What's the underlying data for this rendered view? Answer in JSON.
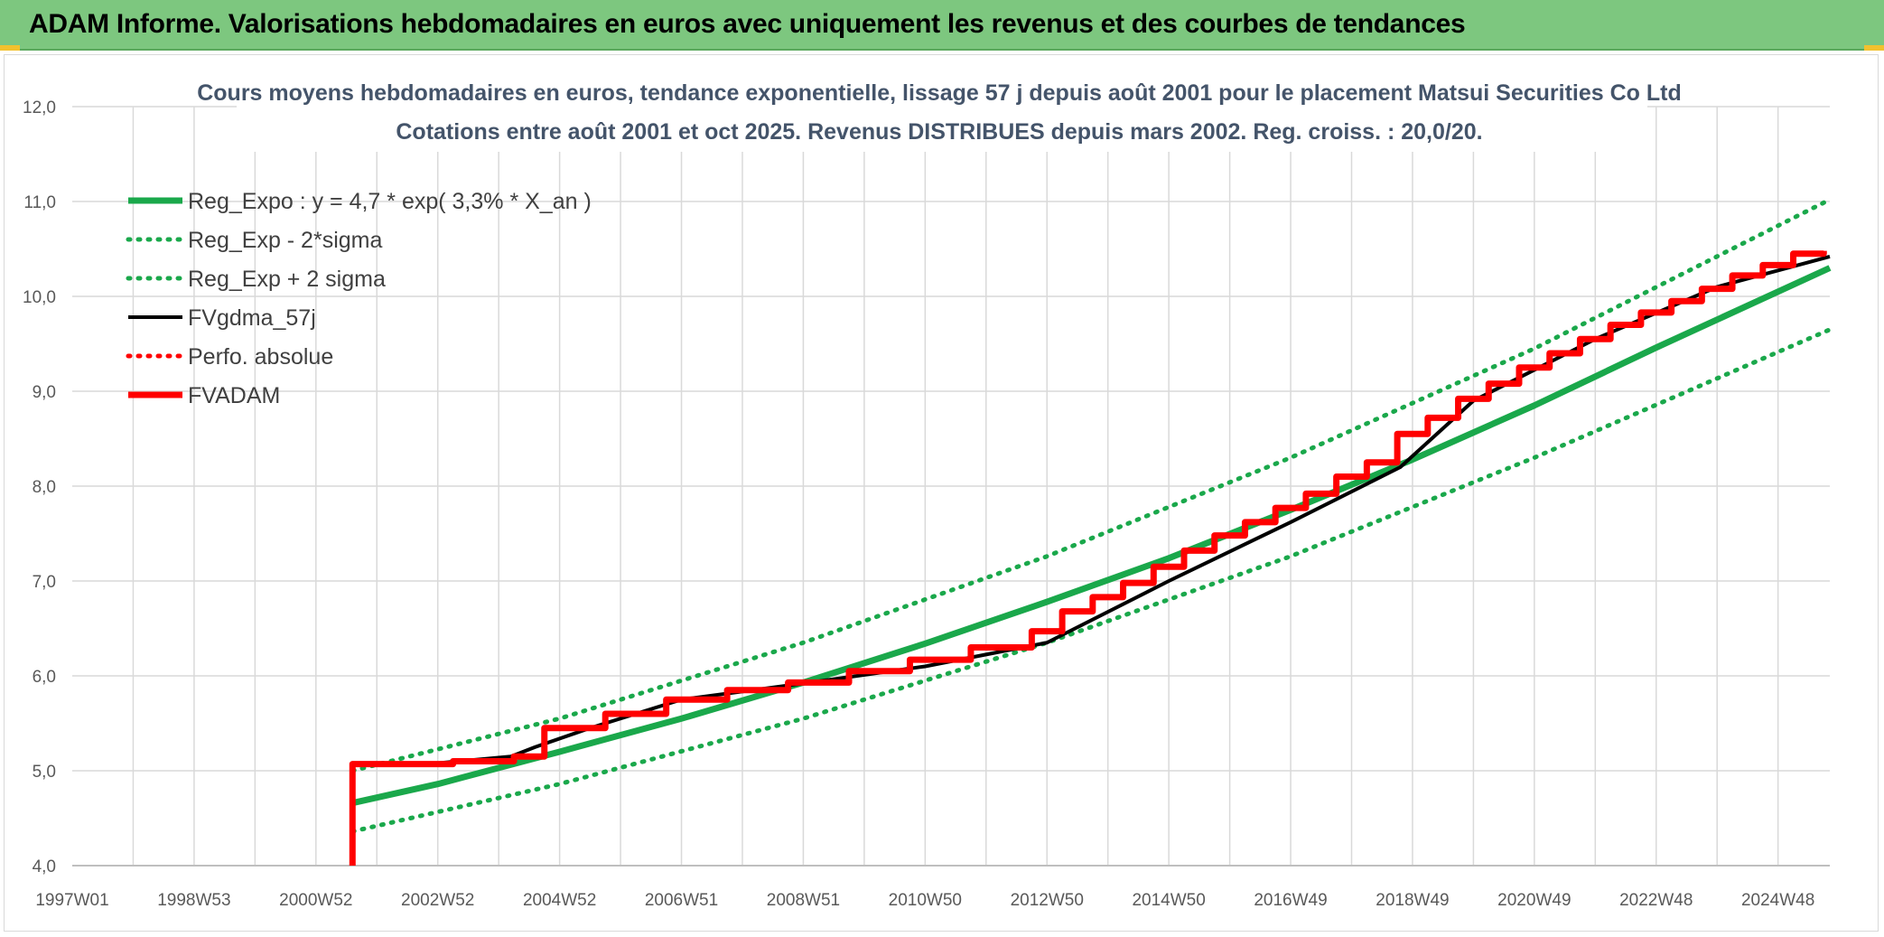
{
  "banner": {
    "title": "ADAM Informe. Valorisations hebdomadaires en euros avec uniquement les revenus et des courbes de tendances"
  },
  "colors": {
    "banner": "#7dc77f",
    "green": "#1aa84b",
    "red": "#ff0000",
    "black": "#000000",
    "grid": "#d9d9d9",
    "title": "#44546a",
    "tick": "#595959"
  },
  "chart_data": {
    "type": "line",
    "title": "Cours moyens hebdomadaires en euros, tendance exponentielle, lissage 57 j depuis août 2001 pour le placement Matsui Securities Co Ltd",
    "subtitle": "Cotations entre août 2001 et oct 2025. Revenus DISTRIBUES depuis mars 2002. Reg. croiss. : 20,0/20.",
    "x_tick_labels": [
      "1997W01",
      "1998W53",
      "2000W52",
      "2002W52",
      "2004W52",
      "2006W51",
      "2008W51",
      "2010W50",
      "2012W50",
      "2014W50",
      "2016W49",
      "2018W49",
      "2020W49",
      "2022W48",
      "2024W48"
    ],
    "x_tick_years": [
      1997.0,
      1999.0,
      2001.0,
      2003.0,
      2005.0,
      2007.0,
      2009.0,
      2011.0,
      2013.0,
      2015.0,
      2017.0,
      2019.0,
      2021.0,
      2023.0,
      2025.0
    ],
    "xlim": [
      1997.0,
      2025.85
    ],
    "ylim": [
      4.0,
      12.0
    ],
    "y_ticks": [
      "4,0",
      "5,0",
      "6,0",
      "7,0",
      "8,0",
      "9,0",
      "10,0",
      "11,0",
      "12,0"
    ],
    "grid": true,
    "legend_position": "top-left",
    "series": [
      {
        "name": "Reg_Expo : y = 4,7 * exp( 3,3% *  X_an )",
        "color": "#1aa84b",
        "style": "solid",
        "x": [
          2001.6,
          2003.0,
          2005.0,
          2007.0,
          2009.0,
          2011.0,
          2013.0,
          2015.0,
          2017.0,
          2019.0,
          2021.0,
          2023.0,
          2025.85
        ],
        "y": [
          4.66,
          4.86,
          5.2,
          5.55,
          5.93,
          6.34,
          6.78,
          7.24,
          7.75,
          8.28,
          8.85,
          9.46,
          10.3
        ]
      },
      {
        "name": "Reg_Exp - 2*sigma",
        "color": "#1aa84b",
        "style": "dotted",
        "x": [
          2001.6,
          2005.0,
          2009.0,
          2013.0,
          2017.0,
          2021.0,
          2025.85
        ],
        "y": [
          4.36,
          4.86,
          5.55,
          6.35,
          7.26,
          8.3,
          9.65
        ]
      },
      {
        "name": "Reg_Exp + 2 sigma",
        "color": "#1aa84b",
        "style": "dotted",
        "x": [
          2001.6,
          2005.0,
          2009.0,
          2013.0,
          2017.0,
          2021.0,
          2025.85
        ],
        "y": [
          5.0,
          5.55,
          6.35,
          7.26,
          8.3,
          9.45,
          11.02
        ]
      },
      {
        "name": "FVgdma_57j",
        "color": "#000000",
        "style": "solid",
        "x": [
          2001.6,
          2003.0,
          2004.2,
          2004.6,
          2005.5,
          2007.0,
          2009.0,
          2011.0,
          2013.0,
          2015.0,
          2017.0,
          2018.8,
          2020.0,
          2022.0,
          2024.0,
          2025.85
        ],
        "y": [
          5.07,
          5.08,
          5.15,
          5.25,
          5.45,
          5.75,
          5.92,
          6.1,
          6.35,
          7.0,
          7.62,
          8.2,
          8.9,
          9.55,
          10.1,
          10.42
        ]
      },
      {
        "name": "Perfo. absolue",
        "color": "#ff0000",
        "style": "dotted",
        "x": [],
        "y": []
      },
      {
        "name": "FVADAM",
        "color": "#ff0000",
        "style": "solid",
        "steps": true,
        "x": [
          2001.6,
          2001.6,
          2003.25,
          2004.25,
          2004.75,
          2005.75,
          2006.75,
          2007.75,
          2008.75,
          2009.75,
          2010.75,
          2011.75,
          2012.75,
          2013.25,
          2013.75,
          2014.25,
          2014.75,
          2015.25,
          2015.75,
          2016.25,
          2016.75,
          2017.25,
          2017.75,
          2018.25,
          2018.75,
          2019.25,
          2019.75,
          2020.25,
          2020.75,
          2021.25,
          2021.75,
          2022.25,
          2022.75,
          2023.25,
          2023.75,
          2024.25,
          2024.75,
          2025.25,
          2025.75
        ],
        "y": [
          4.0,
          5.07,
          5.1,
          5.15,
          5.45,
          5.6,
          5.75,
          5.85,
          5.93,
          6.05,
          6.17,
          6.3,
          6.47,
          6.68,
          6.83,
          6.98,
          7.15,
          7.32,
          7.48,
          7.62,
          7.77,
          7.92,
          8.1,
          8.25,
          8.55,
          8.72,
          8.92,
          9.08,
          9.25,
          9.4,
          9.55,
          9.7,
          9.83,
          9.95,
          10.08,
          10.22,
          10.33,
          10.45,
          10.48
        ]
      }
    ]
  }
}
